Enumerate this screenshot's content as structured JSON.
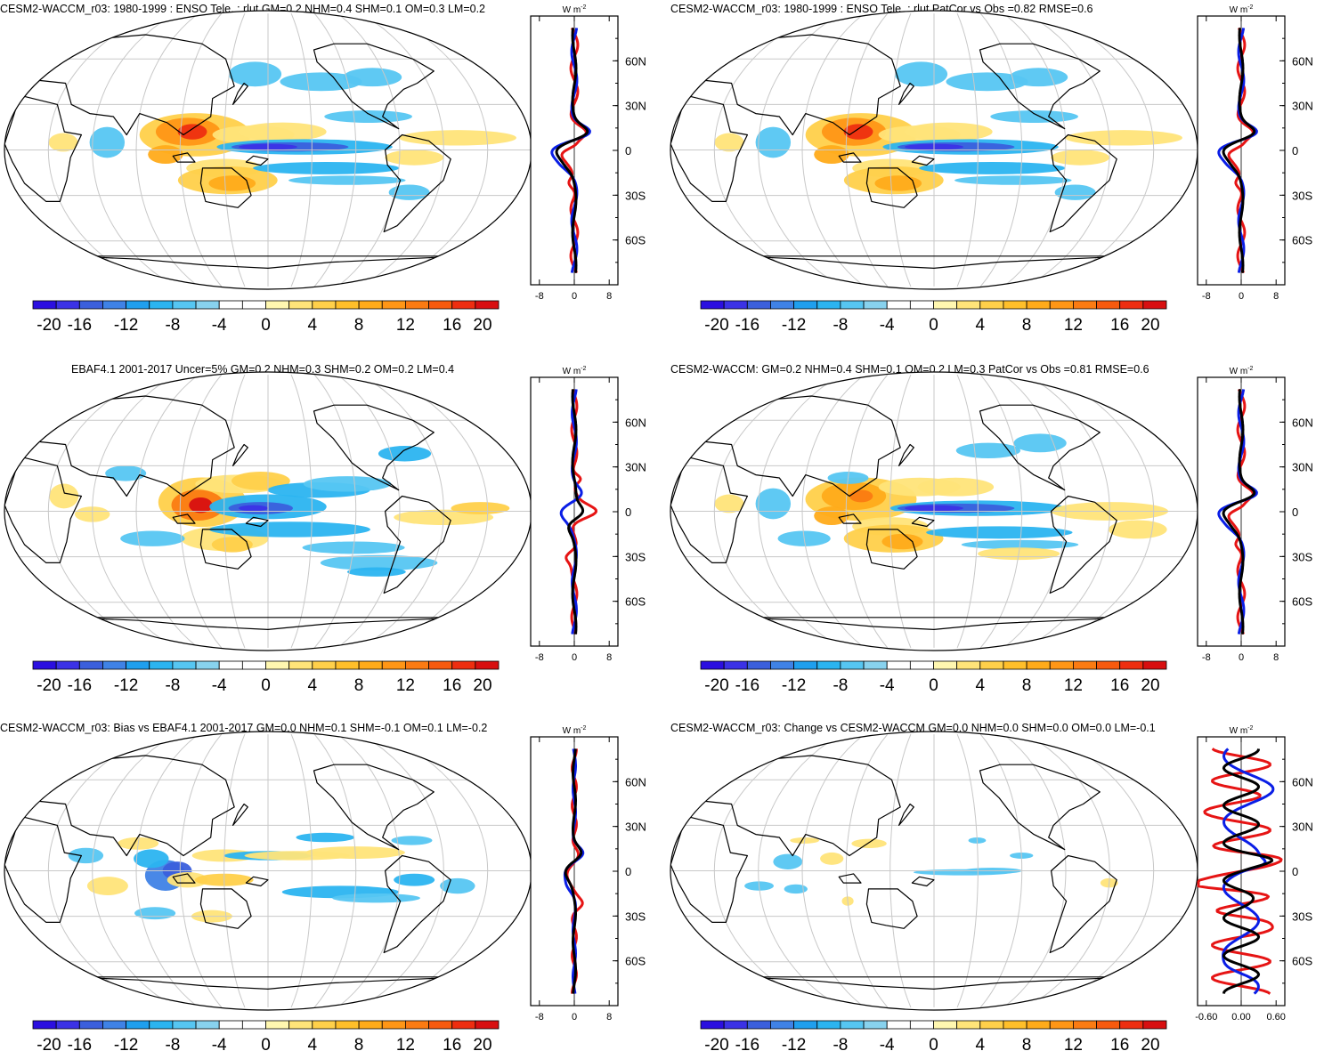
{
  "figure": {
    "colors": {
      "scale": [
        "#2b0fe0",
        "#3b32e6",
        "#3b5fdc",
        "#3f82e6",
        "#1f9fee",
        "#2bb4f0",
        "#56c6f2",
        "#88d2ee",
        "#ffffff",
        "#ffffff",
        "#fff7b0",
        "#ffe479",
        "#ffd04a",
        "#ffbf2a",
        "#ffab1a",
        "#ff9616",
        "#fb7b12",
        "#f75a0e",
        "#ee2e10",
        "#d80f10"
      ],
      "land_outline": "#000000",
      "grid": "#c8c8c8",
      "profile_model": "#0a1ee6",
      "profile_obs": "#e61414",
      "profile_diff": "#000000"
    },
    "colorbar_labels": [
      "-20",
      "-16",
      "-12",
      "-8",
      "-4",
      "0",
      "4",
      "8",
      "12",
      "16",
      "20"
    ],
    "panels": [
      {
        "id": "p1",
        "title": "CESM2-WACCM_r03: 1980-1999 : ENSO Tele. : rlut GM=0.2 NHM=0.4 SHM=0.1 OM=0.3 LM=0.2",
        "units": "W m",
        "units_exp": "-2",
        "lat_labels": [
          "60N",
          "30N",
          "0",
          "30S",
          "60S"
        ],
        "profile_xticks": [
          "-8",
          "0",
          "8"
        ],
        "profile_xrange": [
          -10,
          10
        ],
        "map_variant": "model",
        "profile_variant": "a"
      },
      {
        "id": "p2",
        "title": "CESM2-WACCM_r03: 1980-1999 : ENSO Tele. : rlut PatCor vs Obs =0.82 RMSE=0.6",
        "units": "W m",
        "units_exp": "-2",
        "lat_labels": [
          "60N",
          "30N",
          "0",
          "30S",
          "60S"
        ],
        "profile_xticks": [
          "-8",
          "0",
          "8"
        ],
        "profile_xrange": [
          -10,
          10
        ],
        "map_variant": "model",
        "profile_variant": "a"
      },
      {
        "id": "p3",
        "title": "EBAF4.1 2001-2017 Uncer=5% GM=0.2 NHM=0.3 SHM=0.2 OM=0.2 LM=0.4",
        "units": "W m",
        "units_exp": "-2",
        "lat_labels": [
          "60N",
          "30N",
          "0",
          "30S",
          "60S"
        ],
        "profile_xticks": [
          "-8",
          "0",
          "8"
        ],
        "profile_xrange": [
          -10,
          10
        ],
        "map_variant": "obs",
        "profile_variant": "b"
      },
      {
        "id": "p4",
        "title": "CESM2-WACCM: GM=0.2 NHM=0.4 SHM=0.1 OM=0.2 LM=0.3 PatCor vs Obs =0.81 RMSE=0.6",
        "units": "W m",
        "units_exp": "-2",
        "lat_labels": [
          "60N",
          "30N",
          "0",
          "30S",
          "60S"
        ],
        "profile_xticks": [
          "-8",
          "0",
          "8"
        ],
        "profile_xrange": [
          -10,
          10
        ],
        "map_variant": "model2",
        "profile_variant": "a"
      },
      {
        "id": "p5",
        "title": "CESM2-WACCM_r03: Bias vs EBAF4.1 2001-2017 GM=0.0 NHM=0.1 SHM=-0.1 OM=0.1 LM=-0.2",
        "units": "W m",
        "units_exp": "-2",
        "lat_labels": [
          "60N",
          "30N",
          "0",
          "30S",
          "60S"
        ],
        "profile_xticks": [
          "-8",
          "0",
          "8"
        ],
        "profile_xrange": [
          -10,
          10
        ],
        "map_variant": "bias",
        "profile_variant": "c"
      },
      {
        "id": "p6",
        "title": "CESM2-WACCM_r03: Change vs CESM2-WACCM GM=0.0 NHM=0.0 SHM=0.0 OM=0.0 LM=-0.1",
        "units": "W m",
        "units_exp": "-2",
        "lat_labels": [
          "60N",
          "30N",
          "0",
          "30S",
          "60S"
        ],
        "profile_xticks": [
          "-0.60",
          "0.00",
          "0.60"
        ],
        "profile_xrange": [
          -0.75,
          0.75
        ],
        "map_variant": "change",
        "profile_variant": "d"
      }
    ]
  }
}
